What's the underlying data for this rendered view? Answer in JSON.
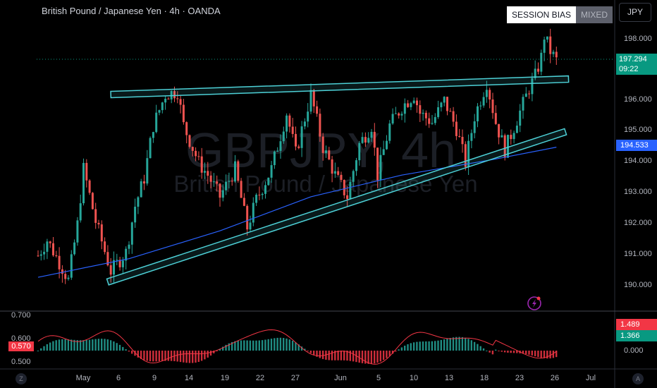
{
  "header": {
    "title": "British Pound / Japanese Yen · 4h · OANDA",
    "session_bias_label": "SESSION BIAS",
    "session_bias_value": "MIXED",
    "currency": "JPY"
  },
  "watermark": {
    "symbol": "GBPJPY, 4h",
    "name": "British Pound / Japanese Yen"
  },
  "price_axis": {
    "ticks": [
      "198.000",
      "196.000",
      "195.000",
      "194.000",
      "193.000",
      "192.000",
      "191.000",
      "190.000"
    ],
    "last_price": "197.294",
    "countdown": "09:22",
    "ma_value": "194.533"
  },
  "time_axis": {
    "ticks": [
      "May",
      "6",
      "9",
      "14",
      "19",
      "22",
      "27",
      "Jun",
      "5",
      "10",
      "13",
      "18",
      "23",
      "26",
      "Jul"
    ]
  },
  "indicator": {
    "ticks": [
      "0.700",
      "0.600",
      "0.500"
    ],
    "left_value": "0.570",
    "value_red": "1.489",
    "value_green": "1.366",
    "zero": "0.000"
  },
  "corners": {
    "left": "Z",
    "right": "A"
  },
  "colors": {
    "up": "#26a69a",
    "down": "#ef5350",
    "channel": "#4dd0d6",
    "ma": "#2962ff",
    "price_tag": "#089981",
    "osc_up": "#26a69a",
    "osc_down": "#f23645"
  },
  "chart_data": {
    "type": "candlestick",
    "title": "British Pound / Japanese Yen · 4h · OANDA",
    "ylim": [
      189.5,
      198.5
    ],
    "x_labels": [
      "May",
      "6",
      "9",
      "14",
      "19",
      "22",
      "27",
      "Jun",
      "5",
      "10",
      "13",
      "18",
      "23",
      "26",
      "Jul"
    ],
    "price_path": [
      [
        0,
        191.0
      ],
      [
        3,
        191.5
      ],
      [
        8,
        190.6
      ],
      [
        10,
        190.2
      ],
      [
        13,
        192.0
      ],
      [
        15,
        193.8
      ],
      [
        19,
        192.1
      ],
      [
        24,
        190.5
      ],
      [
        29,
        191.1
      ],
      [
        32,
        192.6
      ],
      [
        35,
        193.5
      ],
      [
        38,
        195.2
      ],
      [
        42,
        196.2
      ],
      [
        46,
        196.3
      ],
      [
        48,
        195.2
      ],
      [
        53,
        194.0
      ],
      [
        56,
        193.6
      ],
      [
        60,
        192.9
      ],
      [
        65,
        193.8
      ],
      [
        69,
        191.9
      ],
      [
        72,
        192.8
      ],
      [
        77,
        193.8
      ],
      [
        82,
        195.6
      ],
      [
        85,
        194.3
      ],
      [
        90,
        196.2
      ],
      [
        94,
        194.5
      ],
      [
        98,
        193.6
      ],
      [
        102,
        192.9
      ],
      [
        106,
        194.6
      ],
      [
        110,
        195.2
      ],
      [
        112,
        193.6
      ],
      [
        116,
        195.2
      ],
      [
        120,
        195.8
      ],
      [
        124,
        196.2
      ],
      [
        126,
        195.6
      ],
      [
        130,
        195.3
      ],
      [
        134,
        196.0
      ],
      [
        138,
        195.1
      ],
      [
        141,
        194.0
      ],
      [
        144,
        195.5
      ],
      [
        148,
        196.6
      ],
      [
        151,
        195.3
      ],
      [
        154,
        194.4
      ],
      [
        158,
        195.4
      ],
      [
        162,
        196.4
      ],
      [
        164,
        196.8
      ],
      [
        166,
        197.4
      ],
      [
        167,
        198.1
      ],
      [
        169,
        197.6
      ],
      [
        171,
        197.3
      ]
    ],
    "moving_average": [
      [
        0,
        190.3
      ],
      [
        30,
        190.9
      ],
      [
        60,
        191.8
      ],
      [
        90,
        192.9
      ],
      [
        120,
        193.6
      ],
      [
        150,
        194.1
      ],
      [
        171,
        194.5
      ]
    ],
    "trendlines": {
      "upper_channel": [
        [
          24,
          196.2
        ],
        [
          175,
          196.7
        ]
      ],
      "lower_channel": [
        [
          23,
          190.15
        ],
        [
          174,
          195.0
        ]
      ]
    },
    "oscillator": {
      "histogram_range": [
        -0.5,
        1.5
      ],
      "line_value_last": 1.489,
      "hist_value_last": 1.366
    }
  }
}
